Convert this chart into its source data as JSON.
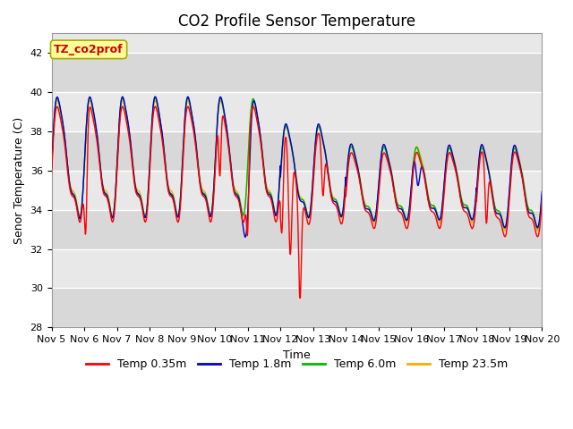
{
  "title": "CO2 Profile Sensor Temperature",
  "xlabel": "Time",
  "ylabel": "Senor Temperature (C)",
  "ylim": [
    28,
    43
  ],
  "xlim": [
    0,
    15
  ],
  "yticks": [
    28,
    30,
    32,
    34,
    36,
    38,
    40,
    42
  ],
  "xtick_labels": [
    "Nov 5",
    "Nov 6",
    "Nov 7",
    "Nov 8",
    "Nov 9",
    "Nov 10",
    "Nov 11",
    "Nov 12",
    "Nov 13",
    "Nov 14",
    "Nov 15",
    "Nov 16",
    "Nov 17",
    "Nov 18",
    "Nov 19",
    "Nov 20"
  ],
  "xtick_positions": [
    0,
    1,
    2,
    3,
    4,
    5,
    6,
    7,
    8,
    9,
    10,
    11,
    12,
    13,
    14,
    15
  ],
  "colors": {
    "Temp 0.35m": "#ff0000",
    "Temp 1.8m": "#0000cc",
    "Temp 6.0m": "#00bb00",
    "Temp 23.5m": "#ffaa00"
  },
  "legend_label": "TZ_co2prof",
  "fig_bg": "#ffffff",
  "plot_bg": "#e8e8e8",
  "grid_color": "#ffffff",
  "title_fontsize": 12,
  "axis_label_fontsize": 9,
  "tick_fontsize": 8,
  "legend_fontsize": 9,
  "linewidth": 1.0
}
